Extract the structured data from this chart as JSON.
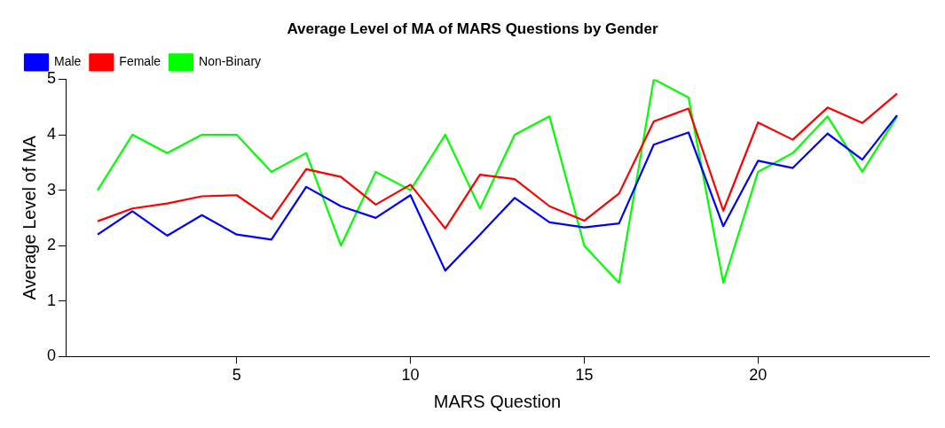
{
  "chart_data": {
    "type": "line",
    "title": "Average Level of MA of MARS Questions by Gender",
    "xlabel": "MARS Question",
    "ylabel": "Average Level of MA",
    "x": [
      1,
      2,
      3,
      4,
      5,
      6,
      7,
      8,
      9,
      10,
      11,
      12,
      13,
      14,
      15,
      16,
      17,
      18,
      19,
      20,
      21,
      22,
      23,
      24
    ],
    "series": [
      {
        "name": "Male",
        "color": "#0000ff",
        "values": [
          2.2,
          2.62,
          2.18,
          2.55,
          2.2,
          2.11,
          3.06,
          2.71,
          2.5,
          2.91,
          1.55,
          2.2,
          2.86,
          2.42,
          2.33,
          2.4,
          3.82,
          4.04,
          2.35,
          3.53,
          3.4,
          4.02,
          3.55,
          4.35
        ]
      },
      {
        "name": "Female",
        "color": "#ff0000",
        "values": [
          2.44,
          2.67,
          2.76,
          2.89,
          2.91,
          2.48,
          3.38,
          3.24,
          2.74,
          3.1,
          2.31,
          3.28,
          3.2,
          2.71,
          2.45,
          2.94,
          4.24,
          4.47,
          2.63,
          4.22,
          3.91,
          4.49,
          4.21,
          4.74
        ]
      },
      {
        "name": "Non-Binary",
        "color": "#00ff00",
        "values": [
          3,
          4,
          3.67,
          4,
          4,
          3.33,
          3.67,
          2,
          3.33,
          3,
          4,
          2.67,
          4,
          4.33,
          2,
          1.33,
          5,
          4.67,
          1.33,
          3.33,
          3.67,
          4.33,
          3.33,
          4.33
        ]
      }
    ],
    "xlim": [
      0.08,
      24.92
    ],
    "xticks": [
      5,
      10,
      15,
      20
    ],
    "ylim": [
      0,
      5
    ],
    "yticks": [
      0,
      1,
      2,
      3,
      4,
      5
    ],
    "grid": false,
    "legend": "top left",
    "marker": "none",
    "line_style": "solid"
  }
}
